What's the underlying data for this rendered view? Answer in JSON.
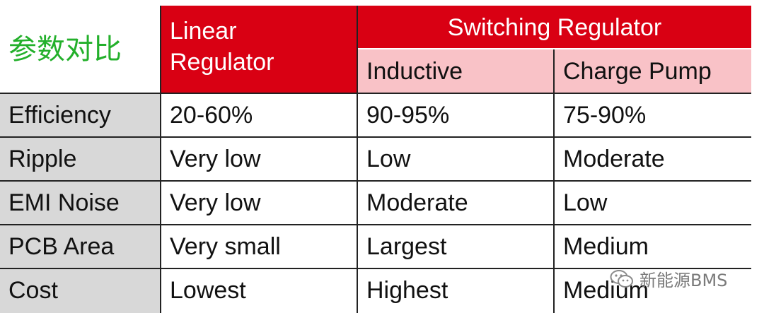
{
  "corner_title": "参数对比",
  "headers": {
    "linear": "Linear\nRegulator",
    "switching": "Switching Regulator",
    "inductive": "Inductive",
    "charge_pump": "Charge Pump"
  },
  "rows": [
    {
      "label": "Efficiency",
      "linear": "20-60%",
      "inductive": "90-95%",
      "charge_pump": "75-90%"
    },
    {
      "label": "Ripple",
      "linear": "Very low",
      "inductive": "Low",
      "charge_pump": "Moderate"
    },
    {
      "label": "EMI Noise",
      "linear": "Very low",
      "inductive": "Moderate",
      "charge_pump": "Low"
    },
    {
      "label": "PCB Area",
      "linear": "Very small",
      "inductive": "Largest",
      "charge_pump": "Medium"
    },
    {
      "label": "Cost",
      "linear": "Lowest",
      "inductive": "Highest",
      "charge_pump": "Medium"
    }
  ],
  "watermark": "新能源BMS",
  "colors": {
    "header_red": "#d90013",
    "header_pink": "#f9c2c7",
    "row_label_gray": "#d8d8d8",
    "corner_green": "#23b02b"
  }
}
